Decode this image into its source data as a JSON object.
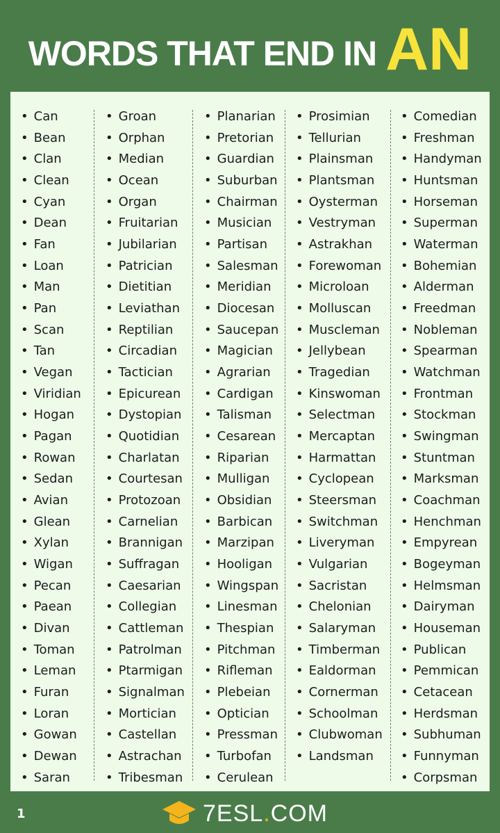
{
  "header": {
    "title": "WORDS THAT END IN",
    "highlight": "AN"
  },
  "columns": [
    [
      "Can",
      "Bean",
      "Clan",
      "Clean",
      "Cyan",
      "Dean",
      "Fan",
      "Loan",
      "Man",
      "Pan",
      "Scan",
      "Tan",
      "Vegan",
      "Viridian",
      "Hogan",
      "Pagan",
      "Rowan",
      "Sedan",
      "Avian",
      "Glean",
      "Xylan",
      "Wigan",
      "Pecan",
      "Paean",
      "Divan",
      "Toman",
      "Leman",
      "Furan",
      "Loran",
      "Gowan",
      "Dewan",
      "Saran"
    ],
    [
      "Groan",
      "Orphan",
      "Median",
      "Ocean",
      "Organ",
      "Fruitarian",
      "Jubilarian",
      "Patrician",
      "Dietitian",
      "Leviathan",
      "Reptilian",
      "Circadian",
      "Tactician",
      "Epicurean",
      "Dystopian",
      "Quotidian",
      "Charlatan",
      "Courtesan",
      "Protozoan",
      "Carnelian",
      "Brannigan",
      "Suffragan",
      "Caesarian",
      "Collegian",
      "Cattleman",
      "Patrolman",
      "Ptarmigan",
      "Signalman",
      "Mortician",
      "Castellan",
      "Astrachan",
      "Tribesman"
    ],
    [
      "Planarian",
      "Pretorian",
      "Guardian",
      "Suburban",
      "Chairman",
      "Musician",
      "Partisan",
      "Salesman",
      "Meridian",
      "Diocesan",
      "Saucepan",
      "Magician",
      "Agrarian",
      "Cardigan",
      "Talisman",
      "Cesarean",
      "Riparian",
      "Mulligan",
      "Obsidian",
      "Barbican",
      "Marzipan",
      "Hooligan",
      "Wingspan",
      "Linesman",
      "Thespian",
      "Pitchman",
      "Rifleman",
      "Plebeian",
      "Optician",
      "Pressman",
      "Turbofan",
      "Cerulean"
    ],
    [
      "Prosimian",
      "Tellurian",
      "Plainsman",
      "Plantsman",
      "Oysterman",
      "Vestryman",
      "Astrakhan",
      "Forewoman",
      "Microloan",
      "Molluscan",
      "Muscleman",
      "Jellybean",
      "Tragedian",
      "Kinswoman",
      "Selectman",
      "Mercaptan",
      "Harmattan",
      "Cyclopean",
      "Steersman",
      "Switchman",
      "Liveryman",
      "Vulgarian",
      "Sacristan",
      "Chelonian",
      "Salaryman",
      "Timberman",
      "Ealdorman",
      "Cornerman",
      "Schoolman",
      "Clubwoman",
      "Landsman"
    ],
    [
      "Comedian",
      "Freshman",
      "Handyman",
      "Huntsman",
      "Horseman",
      "Superman",
      "Waterman",
      "Bohemian",
      "Alderman",
      "Freedman",
      "Nobleman",
      "Spearman",
      "Watchman",
      "Frontman",
      "Stockman",
      "Swingman",
      "Stuntman",
      "Marksman",
      "Coachman",
      "Henchman",
      "Empyrean",
      "Bogeyman",
      "Helmsman",
      "Dairyman",
      "Houseman",
      "Publican",
      "Pemmican",
      "Cetacean",
      "Herdsman",
      "Subhuman",
      "Funnyman",
      "Corpsman"
    ]
  ],
  "footer": {
    "page": "1",
    "logo_main": "7ESL",
    "logo_dot": ".",
    "logo_tail": "COM"
  },
  "colors": {
    "background": "#4a7c4a",
    "panel": "#eefbe9",
    "highlight": "#f7e33b",
    "logo": "#f4b41a"
  }
}
